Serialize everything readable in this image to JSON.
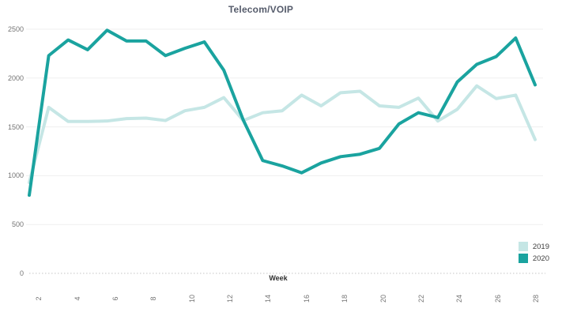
{
  "chart_data": {
    "type": "line",
    "title": "Telecom/VOIP",
    "xlabel": "Week",
    "ylabel": "",
    "x": [
      2,
      3,
      4,
      5,
      6,
      7,
      8,
      9,
      10,
      11,
      12,
      13,
      14,
      15,
      16,
      17,
      18,
      19,
      20,
      21,
      22,
      23,
      24,
      25,
      26,
      27,
      28
    ],
    "xticks": [
      2,
      4,
      6,
      8,
      10,
      12,
      14,
      16,
      18,
      20,
      22,
      24,
      26,
      28
    ],
    "yticks": [
      0,
      500,
      1000,
      1500,
      2000,
      2500
    ],
    "ylim": [
      0,
      2500
    ],
    "grid": "horizontal-light, dotted zero baseline",
    "legend_position": "bottom-right",
    "series": [
      {
        "name": "2019",
        "color": "#c5e6e5",
        "values": [
          930,
          1700,
          1555,
          1555,
          1560,
          1585,
          1590,
          1565,
          1665,
          1700,
          1800,
          1565,
          1645,
          1665,
          1825,
          1715,
          1850,
          1865,
          1715,
          1700,
          1795,
          1560,
          1680,
          1920,
          1790,
          1825,
          1370
        ]
      },
      {
        "name": "2020",
        "color": "#1aa39f",
        "values": [
          800,
          2230,
          2390,
          2290,
          2490,
          2380,
          2380,
          2230,
          2305,
          2370,
          2080,
          1570,
          1155,
          1100,
          1030,
          1130,
          1195,
          1220,
          1280,
          1530,
          1645,
          1595,
          1960,
          2140,
          2220,
          2410,
          1930
        ]
      }
    ]
  },
  "colors": {
    "title_text": "#555b6b",
    "axis_text": "#747474",
    "gridline": "#efefef",
    "zero_line": "#c4c4c4",
    "series_2019": "#c5e6e5",
    "series_2020": "#1aa39f"
  }
}
